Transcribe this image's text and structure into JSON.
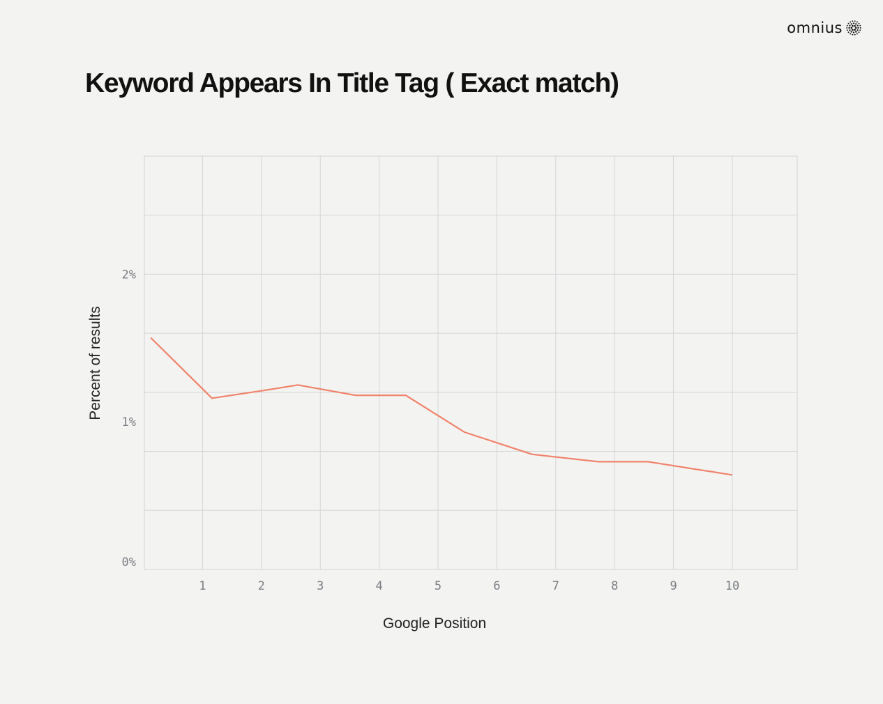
{
  "brand": {
    "name": "omnius",
    "logo_icon": "dotted-sunburst-icon"
  },
  "chart_data": {
    "type": "line",
    "title": "Keyword Appears In Title Tag ( Exact match)",
    "xlabel": "Google Position",
    "ylabel": "Percent of results",
    "x_ticks": [
      1,
      2,
      3,
      4,
      5,
      6,
      7,
      8,
      9,
      10
    ],
    "x_tick_labels": [
      "1",
      "2",
      "3",
      "4",
      "5",
      "6",
      "7",
      "8",
      "9",
      "10"
    ],
    "y_ticks": [
      0,
      1,
      2
    ],
    "y_tick_labels": [
      "0%",
      "1%",
      "2%"
    ],
    "xlim": [
      0,
      11
    ],
    "ylim": [
      0,
      2.8
    ],
    "grid": true,
    "line_color": "#f0836a",
    "series": [
      {
        "x": [
          0.12,
          1.16,
          2.0,
          2.62,
          3.6,
          4.45,
          5.45,
          6.6,
          7.72,
          8.57,
          10.0
        ],
        "y": [
          1.57,
          1.16,
          1.21,
          1.25,
          1.18,
          1.18,
          0.93,
          0.78,
          0.73,
          0.73,
          0.64
        ]
      }
    ]
  }
}
